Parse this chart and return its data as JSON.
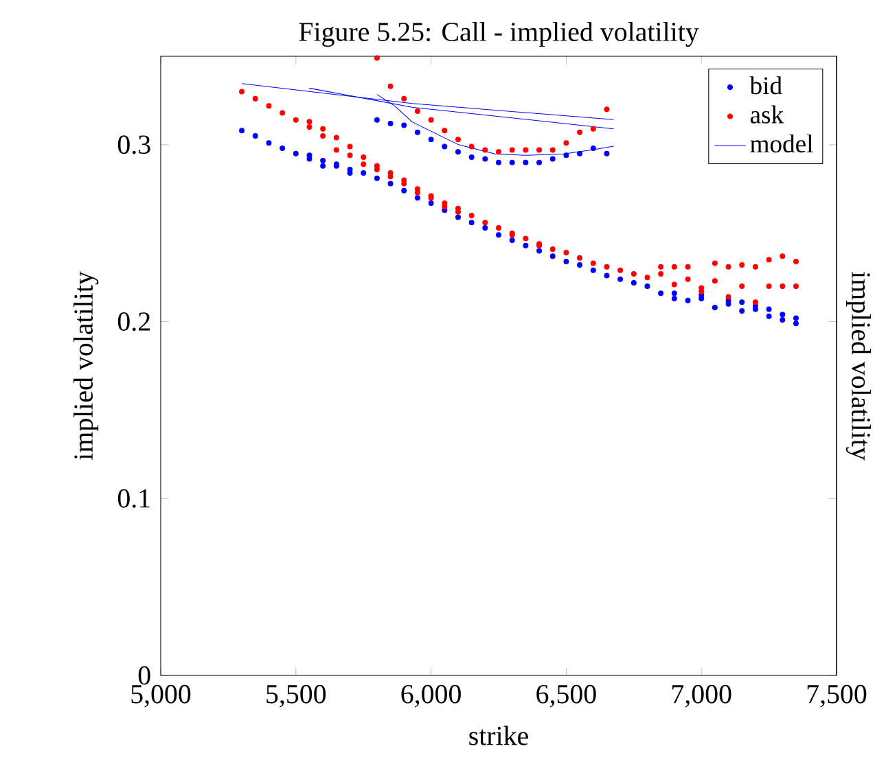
{
  "chart_data": {
    "type": "scatter",
    "title": "Figure 5.25: Call - implied volatility",
    "xlabel": "strike",
    "ylabel": "implied volatility",
    "y2label": "implied volatility",
    "xlim": [
      5000,
      7500
    ],
    "ylim": [
      0,
      0.35
    ],
    "xticks": [
      {
        "value": 5000,
        "label": "5,000"
      },
      {
        "value": 5500,
        "label": "5,500"
      },
      {
        "value": 6000,
        "label": "6,000"
      },
      {
        "value": 6500,
        "label": "6,500"
      },
      {
        "value": 7000,
        "label": "7,000"
      },
      {
        "value": 7500,
        "label": "7,500"
      }
    ],
    "yticks": [
      0,
      0.1,
      0.2,
      0.3
    ],
    "legend": "top right",
    "marker": "circle",
    "grid": false,
    "series": [
      {
        "name": "bid",
        "color": "#0000ff",
        "x": [
          5300,
          5350,
          5400,
          5450,
          5500,
          5550,
          5550,
          5600,
          5600,
          5650,
          5650,
          5700,
          5700,
          5750,
          5800,
          5850,
          5900,
          5950,
          6000,
          6050,
          6100,
          6150,
          6200,
          6250,
          6300,
          6350,
          6400,
          6450,
          6500,
          6550,
          6600,
          6650,
          6700,
          6750,
          6800,
          6850,
          6900,
          6900,
          6950,
          7000,
          7000,
          7050,
          7100,
          7100,
          7150,
          7150,
          7200,
          7200,
          7250,
          7250,
          7300,
          7300,
          7350,
          7350,
          5800,
          5850,
          5900,
          5950,
          6000,
          6050,
          6100,
          6150,
          6200,
          6250,
          6300,
          6350,
          6400,
          6450,
          6500,
          6550,
          6600,
          6650
        ],
        "values": [
          0.308,
          0.305,
          0.301,
          0.298,
          0.295,
          0.294,
          0.292,
          0.291,
          0.288,
          0.289,
          0.288,
          0.286,
          0.284,
          0.284,
          0.281,
          0.278,
          0.274,
          0.27,
          0.267,
          0.263,
          0.259,
          0.256,
          0.253,
          0.249,
          0.246,
          0.243,
          0.24,
          0.237,
          0.234,
          0.232,
          0.229,
          0.226,
          0.224,
          0.222,
          0.22,
          0.216,
          0.216,
          0.213,
          0.212,
          0.215,
          0.213,
          0.208,
          0.212,
          0.21,
          0.211,
          0.206,
          0.209,
          0.207,
          0.207,
          0.203,
          0.204,
          0.201,
          0.202,
          0.199,
          0.314,
          0.312,
          0.311,
          0.307,
          0.303,
          0.299,
          0.296,
          0.293,
          0.292,
          0.29,
          0.29,
          0.29,
          0.29,
          0.292,
          0.294,
          0.295,
          0.298,
          0.295
        ]
      },
      {
        "name": "ask",
        "color": "#ff0000",
        "x": [
          5300,
          5350,
          5400,
          5450,
          5500,
          5550,
          5550,
          5600,
          5600,
          5650,
          5650,
          5700,
          5700,
          5750,
          5750,
          5800,
          5800,
          5850,
          5850,
          5900,
          5900,
          5950,
          5950,
          6000,
          6000,
          6050,
          6050,
          6100,
          6100,
          6150,
          6200,
          6250,
          6300,
          6300,
          6350,
          6400,
          6400,
          6450,
          6500,
          6550,
          6600,
          6650,
          6700,
          6750,
          6800,
          6850,
          6850,
          6900,
          6900,
          6950,
          6950,
          7000,
          7000,
          7050,
          7050,
          7100,
          7100,
          7150,
          7150,
          7200,
          7200,
          7250,
          7250,
          7300,
          7300,
          7350,
          7350,
          5800,
          5850,
          5900,
          5950,
          6000,
          6050,
          6100,
          6150,
          6200,
          6250,
          6300,
          6350,
          6400,
          6450,
          6500,
          6550,
          6600,
          6650
        ],
        "values": [
          0.33,
          0.326,
          0.322,
          0.318,
          0.314,
          0.313,
          0.31,
          0.309,
          0.305,
          0.304,
          0.297,
          0.299,
          0.294,
          0.293,
          0.289,
          0.288,
          0.286,
          0.284,
          0.282,
          0.28,
          0.278,
          0.275,
          0.273,
          0.271,
          0.27,
          0.267,
          0.265,
          0.264,
          0.262,
          0.26,
          0.256,
          0.253,
          0.25,
          0.249,
          0.247,
          0.244,
          0.243,
          0.241,
          0.239,
          0.236,
          0.233,
          0.231,
          0.229,
          0.227,
          0.225,
          0.231,
          0.227,
          0.231,
          0.221,
          0.231,
          0.224,
          0.219,
          0.217,
          0.233,
          0.223,
          0.231,
          0.214,
          0.232,
          0.22,
          0.231,
          0.211,
          0.235,
          0.22,
          0.237,
          0.22,
          0.234,
          0.22,
          0.349,
          0.333,
          0.326,
          0.319,
          0.314,
          0.308,
          0.303,
          0.299,
          0.297,
          0.296,
          0.297,
          0.297,
          0.297,
          0.297,
          0.301,
          0.307,
          0.309,
          0.32
        ]
      },
      {
        "name": "model",
        "type": "line",
        "color": "#0000ff",
        "marker": "none",
        "x": [
          5300,
          5930,
          6675
        ],
        "values": [
          0.3346,
          0.3233,
          0.3142
        ]
      },
      {
        "type": "line",
        "color": "#0000ff",
        "marker": "none",
        "x": [
          5549,
          5930,
          6675
        ],
        "values": [
          0.332,
          0.3212,
          0.309
        ]
      },
      {
        "type": "line",
        "color": "#0000ff",
        "marker": "none",
        "x": [
          5800,
          5865,
          5930,
          6102,
          6237,
          6355,
          6491,
          6609,
          6676
        ],
        "values": [
          0.3284,
          0.322,
          0.3129,
          0.3,
          0.2948,
          0.294,
          0.2948,
          0.2974,
          0.2992
        ]
      }
    ]
  }
}
